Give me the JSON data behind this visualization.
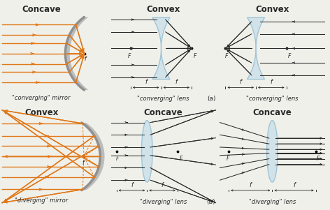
{
  "bg_color": "#f0f0eb",
  "orange_color": "#e07818",
  "dark_color": "#2a2a2a",
  "lens_color": "#b8d8e8",
  "lens_alpha": 0.55,
  "mirror_color": "#909090",
  "mirror_fill": "#b0b0b0",
  "title_fontsize": 8.5,
  "label_fontsize": 6.0,
  "sections": {
    "top_left_title": "Concave",
    "top_left_sub": "\"converging\" mirror",
    "top_mid_title": "Convex",
    "top_mid_sub": "\"converging\" lens",
    "top_right_title": "Convex",
    "top_right_sub": "\"converging\" lens",
    "bot_left_title": "Convex",
    "bot_left_sub": "\"diverging\" mirror",
    "bot_mid_title": "Concave",
    "bot_mid_sub": "\"diverging\" lens",
    "bot_right_title": "Concave",
    "bot_right_sub": "\"diverging\" lens"
  },
  "label_a": "(a)",
  "label_b": "(b)"
}
